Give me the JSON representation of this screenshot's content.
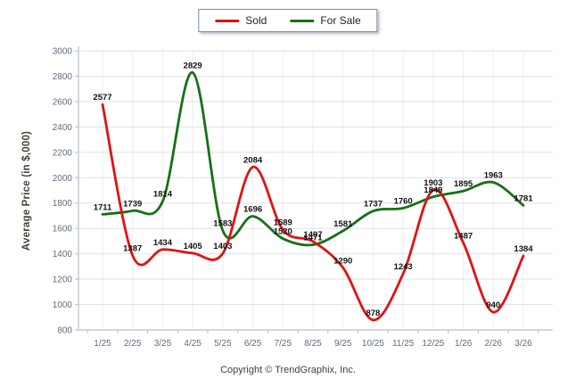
{
  "chart_data": {
    "type": "line",
    "x_categories": [
      "1/25",
      "2/25",
      "3/25",
      "4/25",
      "5/25",
      "6/25",
      "7/25",
      "8/25",
      "9/25",
      "10/25",
      "11/25",
      "12/25",
      "1/26",
      "2/26",
      "3/26"
    ],
    "series": [
      {
        "name": "Sold",
        "color": "#e01212",
        "values": [
          2577,
          1387,
          1434,
          1405,
          1403,
          2084,
          1589,
          1497,
          1290,
          878,
          1243,
          1903,
          1487,
          940,
          1384
        ]
      },
      {
        "name": "For Sale",
        "color": "#167016",
        "values": [
          1711,
          1739,
          1814,
          2829,
          1583,
          1696,
          1520,
          1471,
          1581,
          1737,
          1760,
          1849,
          1895,
          1963,
          1781
        ]
      }
    ],
    "ylabel": "Average Price (in $,000)",
    "ylim": [
      800,
      3000
    ],
    "ytick_step": 200,
    "grid": true,
    "legend_position": "top-center",
    "data_labels": true
  },
  "footer": {
    "copyright": "Copyright © TrendGraphix, Inc."
  },
  "theme": {
    "grid_color": "#e2e2e2",
    "vgrid_color": "#ededed",
    "axis_color": "#a9b3bd",
    "tick_color": "#b5bec7",
    "tick_label_color": "#5d6d7e",
    "data_label_color": "#121212"
  }
}
